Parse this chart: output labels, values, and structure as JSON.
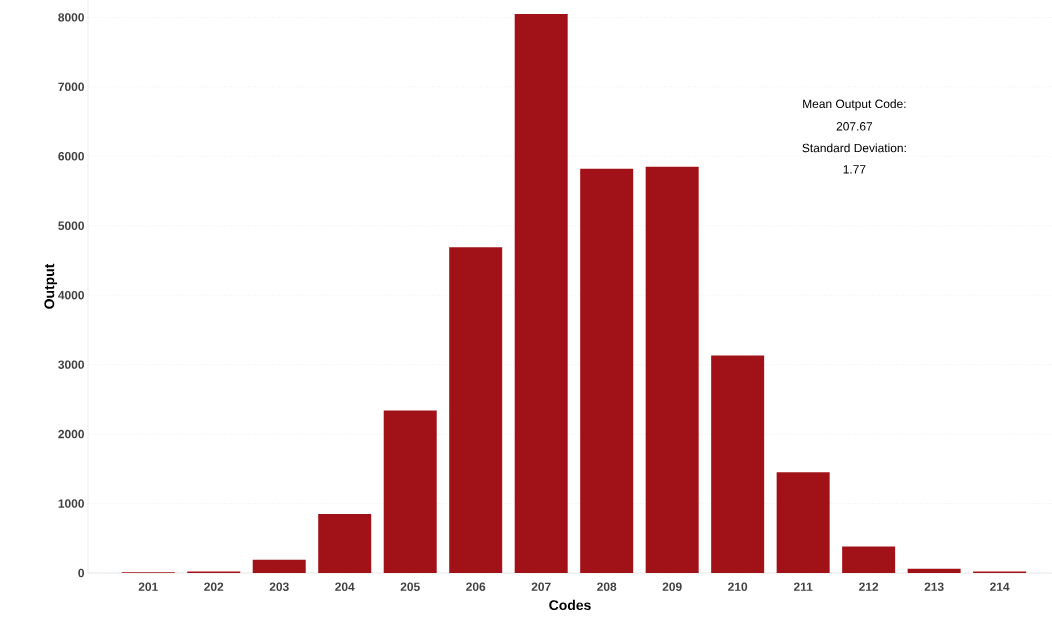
{
  "chart_data": {
    "type": "bar",
    "xlabel": "Codes",
    "ylabel": "Output",
    "categories": [
      "201",
      "202",
      "203",
      "204",
      "205",
      "206",
      "207",
      "208",
      "209",
      "210",
      "211",
      "212",
      "213",
      "214"
    ],
    "values": [
      10,
      20,
      190,
      850,
      2340,
      4690,
      8050,
      5820,
      5850,
      3130,
      1450,
      380,
      60,
      20
    ],
    "color": "#a11218",
    "ylim": [
      0,
      8250
    ],
    "yticks": [
      0,
      1000,
      2000,
      3000,
      4000,
      5000,
      6000,
      7000,
      8000
    ],
    "grid": "y",
    "annotations": [
      "Mean Output Code:",
      "207.67",
      "Standard Deviation:",
      "1.77"
    ]
  }
}
